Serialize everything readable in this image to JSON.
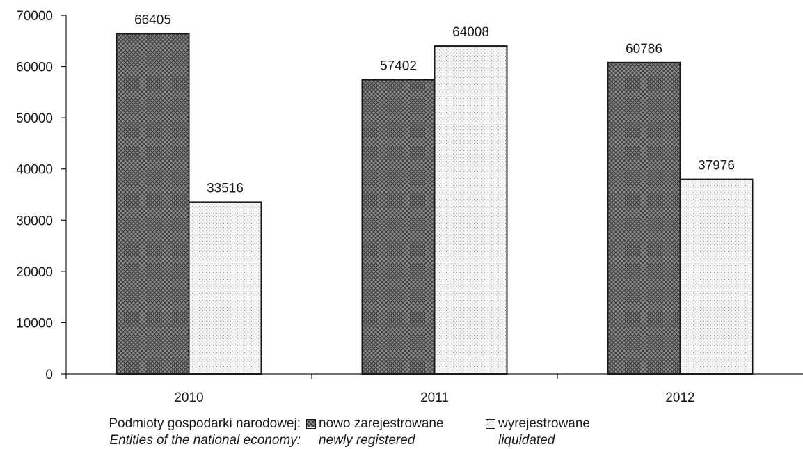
{
  "chart_data": {
    "type": "bar",
    "categories": [
      "2010",
      "2011",
      "2012"
    ],
    "series": [
      {
        "name": "nowo zarejestrowane",
        "name_en": "newly registered",
        "values": [
          66405,
          57402,
          60786
        ],
        "pattern": "crosshatch-dark"
      },
      {
        "name": "wyrejestrowane",
        "name_en": "liquidated",
        "values": [
          33516,
          64008,
          37976
        ],
        "pattern": "dotted-light"
      }
    ],
    "data_labels": [
      [
        "66405",
        "57402",
        "60786"
      ],
      [
        "33516",
        "64008",
        "37976"
      ]
    ],
    "ylim": [
      0,
      70000
    ],
    "yticks": [
      0,
      10000,
      20000,
      30000,
      40000,
      50000,
      60000,
      70000
    ],
    "grid": false,
    "legend_placement": "bottom",
    "colors": {
      "axis": "#1a1a1a",
      "dark_fill": "#6e6e6e",
      "light_fill": "#f2f2f2"
    }
  },
  "legend": {
    "heading": "Podmioty gospodarki narodowej:",
    "heading_en": "Entities of the national economy:",
    "items": [
      {
        "label": "nowo zarejestrowane",
        "label_en": "newly registered"
      },
      {
        "label": "wyrejestrowane",
        "label_en": "liquidated"
      }
    ]
  }
}
